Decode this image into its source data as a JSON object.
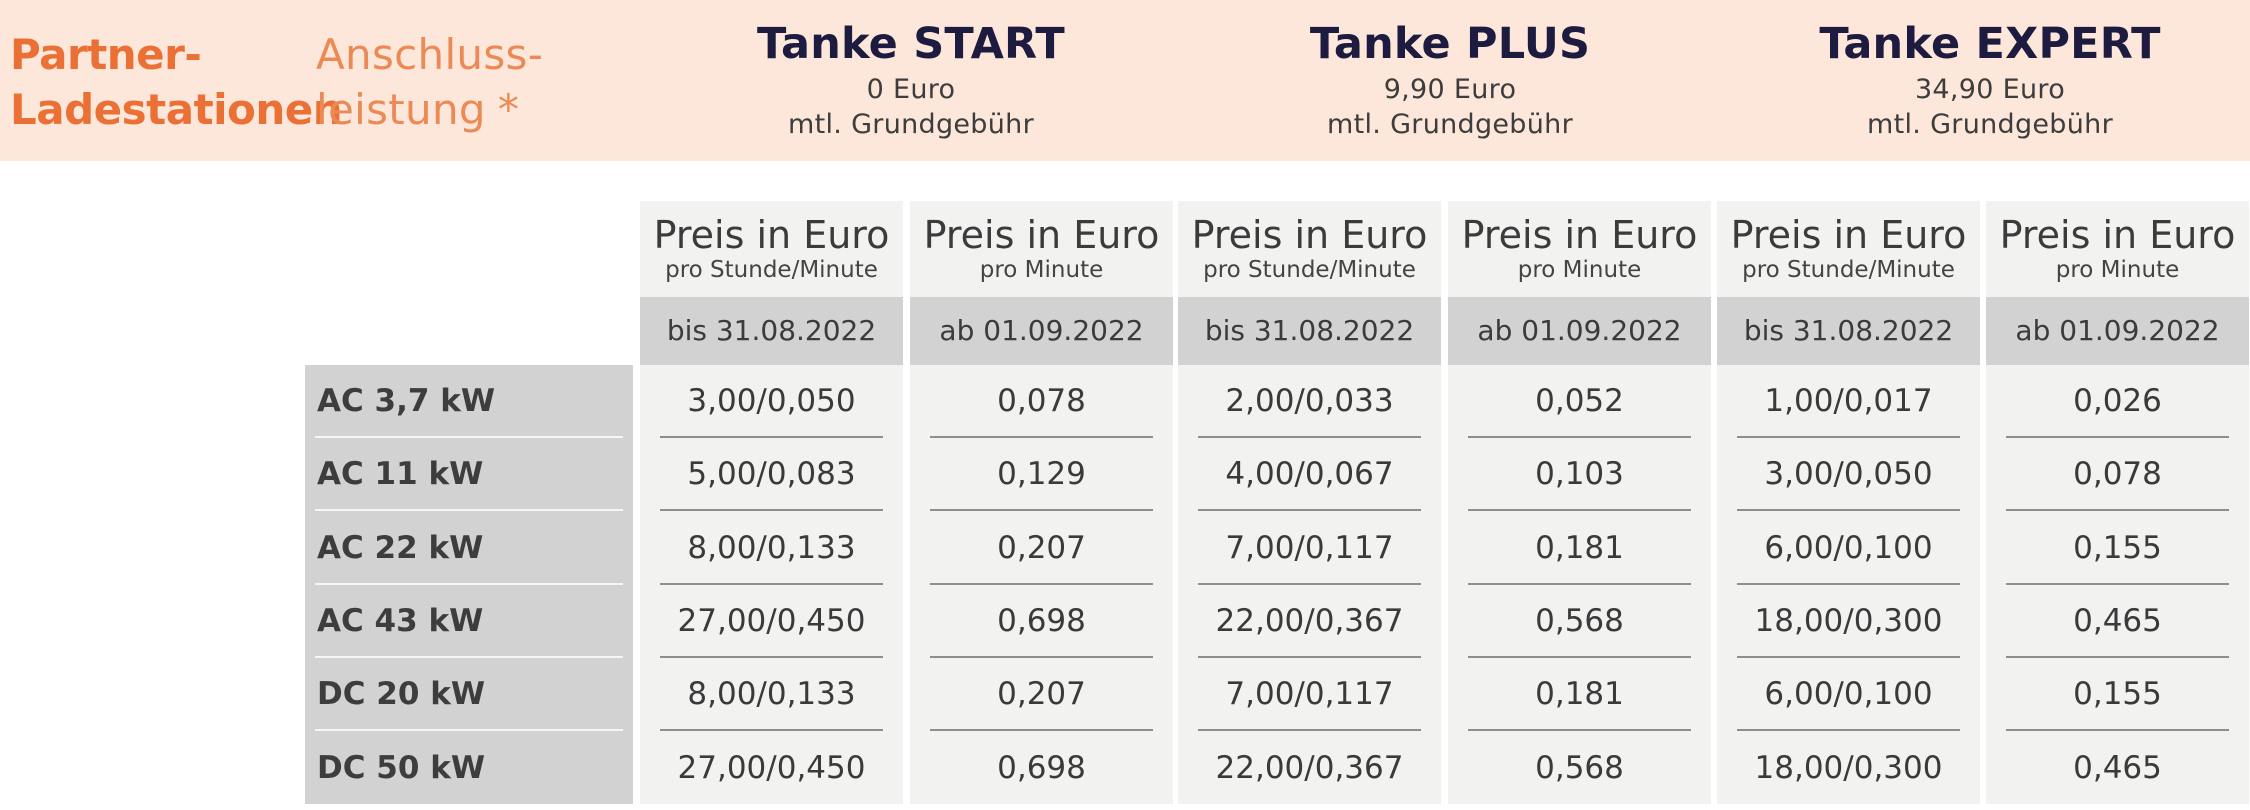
{
  "header": {
    "partner_line1": "Partner-",
    "partner_line2": "Ladestationen",
    "leistung_line1": "Anschluss-",
    "leistung_line2": "leistung",
    "leistung_star": "*"
  },
  "plans": [
    {
      "name": "Tanke START",
      "price": "0 Euro",
      "fee": "mtl. Grundgebühr"
    },
    {
      "name": "Tanke PLUS",
      "price": "9,90 Euro",
      "fee": "mtl. Grundgebühr"
    },
    {
      "name": "Tanke EXPERT",
      "price": "34,90 Euro",
      "fee": "mtl. Grundgebühr"
    }
  ],
  "columns": [
    {
      "title": "Preis in Euro",
      "subtitle": "pro Stunde/Minute",
      "date": "bis 31.08.2022"
    },
    {
      "title": "Preis in Euro",
      "subtitle": "pro Minute",
      "date": "ab 01.09.2022"
    },
    {
      "title": "Preis in Euro",
      "subtitle": "pro Stunde/Minute",
      "date": "bis 31.08.2022"
    },
    {
      "title": "Preis in Euro",
      "subtitle": "pro Minute",
      "date": "ab 01.09.2022"
    },
    {
      "title": "Preis in Euro",
      "subtitle": "pro Stunde/Minute",
      "date": "bis 31.08.2022"
    },
    {
      "title": "Preis in Euro",
      "subtitle": "pro Minute",
      "date": "ab 01.09.2022"
    }
  ],
  "rows": [
    {
      "label": "AC 3,7 kW",
      "values": [
        "3,00/0,050",
        "0,078",
        "2,00/0,033",
        "0,052",
        "1,00/0,017",
        "0,026"
      ]
    },
    {
      "label": "AC 11 kW",
      "values": [
        "5,00/0,083",
        "0,129",
        "4,00/0,067",
        "0,103",
        "3,00/0,050",
        "0,078"
      ]
    },
    {
      "label": "AC 22 kW",
      "values": [
        "8,00/0,133",
        "0,207",
        "7,00/0,117",
        "0,181",
        "6,00/0,100",
        "0,155"
      ]
    },
    {
      "label": "AC 43 kW",
      "values": [
        "27,00/0,450",
        "0,698",
        "22,00/0,367",
        "0,568",
        "18,00/0,300",
        "0,465"
      ]
    },
    {
      "label": "DC 20 kW",
      "values": [
        "8,00/0,133",
        "0,207",
        "7,00/0,117",
        "0,181",
        "6,00/0,100",
        "0,155"
      ]
    },
    {
      "label": "DC 50 kW",
      "values": [
        "27,00/0,450",
        "0,698",
        "22,00/0,367",
        "0,568",
        "18,00/0,300",
        "0,465"
      ]
    }
  ],
  "colors": {
    "header_band": "#fde7db",
    "brand_orange": "#ea7035",
    "light_orange": "#ec8a55",
    "plan_navy": "#1d1b3f",
    "column_bg": "#f2f2f1",
    "date_bg": "#d2d2d2"
  }
}
